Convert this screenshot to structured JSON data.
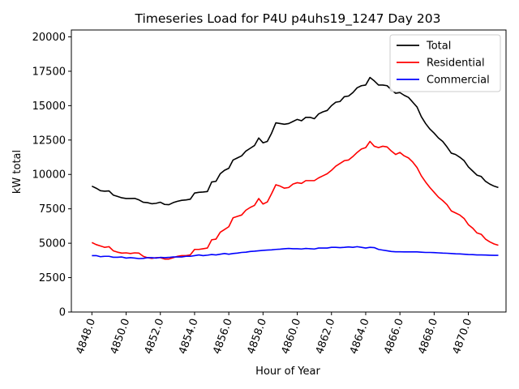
{
  "chart_data": {
    "type": "line",
    "title": "Timeseries Load for P4U p4uhs19_1247  Day 203",
    "xlabel": "Hour of Year",
    "ylabel": "kW total",
    "xlim": [
      4846.8,
      4872.2
    ],
    "ylim": [
      0,
      20500
    ],
    "xticks": [
      4848,
      4850,
      4852,
      4854,
      4856,
      4858,
      4860,
      4862,
      4864,
      4866,
      4868,
      4870
    ],
    "xtick_labels": [
      "4848.0",
      "4850.0",
      "4852.0",
      "4854.0",
      "4856.0",
      "4858.0",
      "4860.0",
      "4862.0",
      "4864.0",
      "4866.0",
      "4868.0",
      "4870.0"
    ],
    "yticks": [
      0,
      2500,
      5000,
      7500,
      10000,
      12500,
      15000,
      17500,
      20000
    ],
    "ytick_labels": [
      "0",
      "2500",
      "5000",
      "7500",
      "10000",
      "12500",
      "15000",
      "17500",
      "20000"
    ],
    "legend_position": "upper-right",
    "x_start": 4848.0,
    "x_step": 0.25,
    "series": [
      {
        "name": "Total",
        "color": "#000000",
        "values": [
          9150,
          9000,
          8820,
          8780,
          8800,
          8500,
          8400,
          8300,
          8250,
          8250,
          8260,
          8150,
          7980,
          7950,
          7870,
          7900,
          7980,
          7820,
          7800,
          7950,
          8050,
          8120,
          8150,
          8200,
          8650,
          8700,
          8720,
          8760,
          9450,
          9500,
          10050,
          10300,
          10450,
          11050,
          11200,
          11350,
          11700,
          11900,
          12100,
          12650,
          12300,
          12400,
          13000,
          13750,
          13700,
          13650,
          13700,
          13850,
          14000,
          13900,
          14150,
          14150,
          14050,
          14400,
          14550,
          14650,
          15000,
          15250,
          15300,
          15650,
          15700,
          15950,
          16300,
          16450,
          16500,
          17050,
          16800,
          16500,
          16500,
          16450,
          16150,
          15900,
          15950,
          15750,
          15600,
          15250,
          14900,
          14200,
          13700,
          13300,
          13000,
          12650,
          12400,
          12000,
          11550,
          11450,
          11250,
          11000,
          10550,
          10250,
          9950,
          9850,
          9500,
          9300,
          9150,
          9050
        ]
      },
      {
        "name": "Residential",
        "color": "#ff0000",
        "values": [
          5050,
          4900,
          4800,
          4700,
          4750,
          4450,
          4350,
          4280,
          4300,
          4250,
          4300,
          4280,
          4050,
          3950,
          3900,
          3950,
          3950,
          3850,
          3850,
          3950,
          4050,
          4100,
          4100,
          4150,
          4550,
          4550,
          4600,
          4650,
          5250,
          5300,
          5800,
          6000,
          6200,
          6850,
          6950,
          7050,
          7400,
          7600,
          7750,
          8250,
          7850,
          8000,
          8600,
          9250,
          9150,
          9000,
          9050,
          9300,
          9400,
          9350,
          9550,
          9550,
          9550,
          9750,
          9900,
          10050,
          10300,
          10600,
          10800,
          11000,
          11050,
          11300,
          11600,
          11850,
          11950,
          12400,
          12050,
          11950,
          12050,
          12000,
          11700,
          11450,
          11600,
          11350,
          11200,
          10900,
          10500,
          9900,
          9450,
          9050,
          8700,
          8350,
          8100,
          7800,
          7350,
          7200,
          7050,
          6800,
          6350,
          6100,
          5750,
          5650,
          5300,
          5100,
          4950,
          4850
        ]
      },
      {
        "name": "Commercial",
        "color": "#0000ff",
        "values": [
          4100,
          4100,
          4020,
          4050,
          4050,
          3980,
          3980,
          4000,
          3920,
          3950,
          3920,
          3880,
          3900,
          3950,
          3950,
          3920,
          3970,
          3950,
          3970,
          4000,
          4000,
          4000,
          4050,
          4050,
          4100,
          4150,
          4100,
          4130,
          4180,
          4150,
          4200,
          4250,
          4200,
          4250,
          4280,
          4330,
          4350,
          4400,
          4420,
          4450,
          4480,
          4500,
          4520,
          4550,
          4570,
          4600,
          4620,
          4600,
          4600,
          4580,
          4620,
          4600,
          4580,
          4650,
          4650,
          4650,
          4700,
          4700,
          4680,
          4700,
          4730,
          4700,
          4750,
          4700,
          4650,
          4700,
          4680,
          4550,
          4500,
          4450,
          4400,
          4380,
          4380,
          4370,
          4370,
          4370,
          4370,
          4350,
          4330,
          4330,
          4320,
          4300,
          4280,
          4270,
          4250,
          4230,
          4220,
          4200,
          4180,
          4170,
          4150,
          4150,
          4140,
          4130,
          4120,
          4120
        ]
      }
    ]
  }
}
